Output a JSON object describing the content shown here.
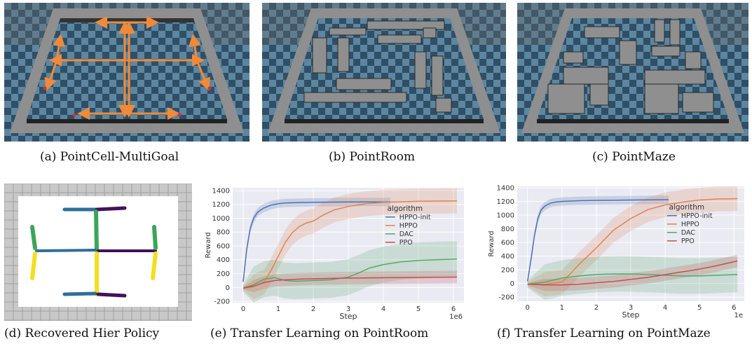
{
  "captions": {
    "a": "(a) PointCell-MultiGoal",
    "b": "(b) PointRoom",
    "c": "(c) PointMaze",
    "d": "(d) Recovered Hier Policy",
    "e": "(e) Transfer Learning on PointRoom",
    "f": "(f) Transfer Learning on PointMaze"
  },
  "colors": {
    "wall": "#8f8f8f",
    "floor_dark": "#2f4f66",
    "floor_light": "#5d86a0",
    "arrow": "#f08a3a",
    "goal": "#d9302c",
    "hppo_init": "#4c72b0",
    "hppo": "#dd8452",
    "dac": "#55a868",
    "ppo": "#c44e52",
    "plot_bg": "#eaeaf2",
    "policy_green": "#3aa55a",
    "policy_blue": "#2e6f96",
    "policy_purple": "#43105e",
    "policy_yellow": "#f2e020"
  },
  "chart_data": [
    {
      "id": "e",
      "type": "line",
      "ylabel": "Reward",
      "xlabel": "Step",
      "x_offset_label": "1e6",
      "xlim": [
        -0.3,
        6.3
      ],
      "ylim": [
        -220,
        1440
      ],
      "xticks": [
        0,
        1,
        2,
        3,
        4,
        5,
        6
      ],
      "yticks": [
        -200,
        0,
        200,
        400,
        600,
        800,
        1000,
        1200,
        1400
      ],
      "legend_title": "algorithm",
      "legend_position": "center-right",
      "series": [
        {
          "name": "HPPO-init",
          "color": "#4c72b0",
          "x": [
            0.0,
            0.1,
            0.2,
            0.3,
            0.4,
            0.5,
            0.6,
            0.7,
            0.8,
            0.9,
            1.0,
            1.2,
            1.5,
            2.0,
            3.0,
            4.2
          ],
          "y": [
            80,
            550,
            850,
            1000,
            1080,
            1120,
            1150,
            1170,
            1190,
            1200,
            1210,
            1220,
            1225,
            1230,
            1235,
            1235
          ]
        },
        {
          "name": "HPPO",
          "color": "#dd8452",
          "x": [
            0.0,
            0.3,
            0.6,
            0.8,
            1.0,
            1.2,
            1.4,
            1.6,
            1.8,
            2.0,
            2.3,
            2.6,
            3.0,
            3.5,
            4.0,
            5.0,
            6.1
          ],
          "y": [
            -10,
            10,
            80,
            250,
            450,
            650,
            790,
            880,
            930,
            960,
            1050,
            1120,
            1170,
            1210,
            1230,
            1245,
            1250
          ]
        },
        {
          "name": "DAC",
          "color": "#55a868",
          "x": [
            0.0,
            0.3,
            0.6,
            0.9,
            1.2,
            1.5,
            2.0,
            2.5,
            3.0,
            3.3,
            3.6,
            4.0,
            4.5,
            5.0,
            5.5,
            6.1
          ],
          "y": [
            -10,
            40,
            120,
            140,
            100,
            90,
            100,
            110,
            150,
            210,
            280,
            330,
            370,
            390,
            400,
            410
          ]
        },
        {
          "name": "PPO",
          "color": "#c44e52",
          "x": [
            0.0,
            0.3,
            0.6,
            0.9,
            1.2,
            1.6,
            2.0,
            2.5,
            3.0,
            4.0,
            5.0,
            6.1
          ],
          "y": [
            -10,
            20,
            70,
            100,
            110,
            120,
            125,
            130,
            135,
            140,
            145,
            150
          ]
        }
      ]
    },
    {
      "id": "f",
      "type": "line",
      "ylabel": "Reward",
      "xlabel": "Step",
      "x_offset_label": "1e",
      "xlim": [
        -0.3,
        6.3
      ],
      "ylim": [
        -260,
        1420
      ],
      "xticks": [
        0,
        1,
        2,
        3,
        4,
        5,
        6
      ],
      "yticks": [
        -200,
        0,
        200,
        400,
        600,
        800,
        1000,
        1200,
        1400
      ],
      "legend_title": "algorithm",
      "legend_position": "center-right",
      "series": [
        {
          "name": "HPPO-init",
          "color": "#4c72b0",
          "x": [
            0.0,
            0.1,
            0.2,
            0.3,
            0.4,
            0.5,
            0.6,
            0.7,
            0.8,
            1.0,
            1.5,
            2.0,
            3.0,
            4.1
          ],
          "y": [
            30,
            350,
            700,
            950,
            1080,
            1130,
            1160,
            1180,
            1190,
            1200,
            1210,
            1215,
            1220,
            1225
          ]
        },
        {
          "name": "HPPO",
          "color": "#dd8452",
          "x": [
            0.0,
            0.5,
            1.0,
            1.2,
            1.5,
            2.0,
            2.5,
            3.0,
            3.5,
            4.0,
            4.5,
            5.0,
            5.5,
            6.1
          ],
          "y": [
            -10,
            -10,
            20,
            120,
            280,
            520,
            780,
            950,
            1080,
            1150,
            1190,
            1220,
            1235,
            1240
          ]
        },
        {
          "name": "DAC",
          "color": "#55a868",
          "x": [
            0.0,
            0.5,
            1.0,
            1.5,
            2.0,
            2.5,
            3.0,
            3.5,
            4.0,
            4.5,
            5.0,
            5.5,
            6.1
          ],
          "y": [
            -10,
            20,
            80,
            110,
            130,
            140,
            140,
            130,
            120,
            110,
            110,
            120,
            130
          ]
        },
        {
          "name": "PPO",
          "color": "#c44e52",
          "x": [
            0.0,
            0.5,
            1.0,
            1.5,
            2.0,
            2.5,
            3.0,
            3.5,
            4.0,
            4.5,
            5.0,
            5.5,
            6.1
          ],
          "y": [
            -10,
            -20,
            -20,
            -10,
            10,
            30,
            60,
            90,
            130,
            170,
            210,
            260,
            330
          ]
        }
      ]
    }
  ]
}
